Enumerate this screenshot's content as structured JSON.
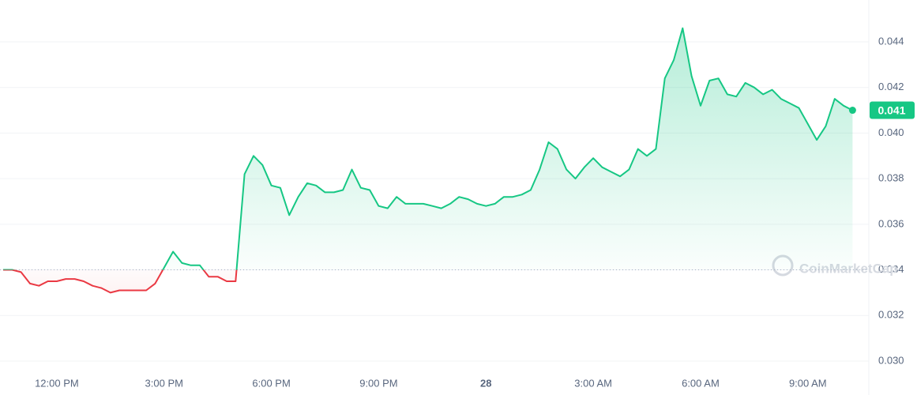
{
  "chart_data": {
    "type": "line",
    "categories": [
      null,
      null,
      null,
      null,
      null,
      null,
      "12:00 PM",
      null,
      null,
      null,
      null,
      null,
      null,
      null,
      null,
      null,
      null,
      null,
      "3:00 PM",
      null,
      null,
      null,
      null,
      null,
      null,
      null,
      null,
      null,
      null,
      null,
      "6:00 PM",
      null,
      null,
      null,
      null,
      null,
      null,
      null,
      null,
      null,
      null,
      null,
      "9:00 PM",
      null,
      null,
      null,
      null,
      null,
      null,
      null,
      null,
      null,
      null,
      null,
      "28",
      null,
      null,
      null,
      null,
      null,
      null,
      null,
      null,
      null,
      null,
      null,
      "3:00 AM",
      null,
      null,
      null,
      null,
      null,
      null,
      null,
      null,
      null,
      null,
      null,
      "6:00 AM",
      null,
      null,
      null,
      null,
      null,
      null,
      null,
      null,
      null,
      null,
      null,
      "9:00 AM",
      null,
      null,
      null,
      null,
      null
    ],
    "values": [
      0.034,
      0.034,
      0.0339,
      0.0334,
      0.0333,
      0.0335,
      0.0335,
      0.0336,
      0.0336,
      0.0335,
      0.0333,
      0.0332,
      0.033,
      0.0331,
      0.0331,
      0.0331,
      0.0331,
      0.0334,
      0.0341,
      0.0348,
      0.0343,
      0.0342,
      0.0342,
      0.0337,
      0.0337,
      0.0335,
      0.0335,
      0.0382,
      0.039,
      0.0386,
      0.0377,
      0.0376,
      0.0364,
      0.0372,
      0.0378,
      0.0377,
      0.0374,
      0.0374,
      0.0375,
      0.0384,
      0.0376,
      0.0375,
      0.0368,
      0.0367,
      0.0372,
      0.0369,
      0.0369,
      0.0369,
      0.0368,
      0.0367,
      0.0369,
      0.0372,
      0.0371,
      0.0369,
      0.0368,
      0.0369,
      0.0372,
      0.0372,
      0.0373,
      0.0375,
      0.0384,
      0.0396,
      0.0393,
      0.0384,
      0.038,
      0.0385,
      0.0389,
      0.0385,
      0.0383,
      0.0381,
      0.0384,
      0.0393,
      0.039,
      0.0393,
      0.0424,
      0.0432,
      0.0446,
      0.0425,
      0.0412,
      0.0423,
      0.0424,
      0.0417,
      0.0416,
      0.0422,
      0.042,
      0.0417,
      0.0419,
      0.0415,
      0.0413,
      0.0411,
      0.0404,
      0.0397,
      0.0403,
      0.0415,
      0.0412,
      0.041
    ],
    "baseline": 0.034,
    "up_color": "#16c784",
    "down_color": "#ea3943",
    "ylim": [
      0.0295,
      0.0455
    ],
    "yticks": [
      {
        "value": 0.03,
        "label": "0.030"
      },
      0.032,
      0.034,
      0.036,
      0.038,
      {
        "value": 0.04,
        "label": "0.040"
      },
      0.042,
      0.044
    ],
    "grid": true,
    "current_price_label": "0.041",
    "watermark": "CoinMarketCap"
  }
}
